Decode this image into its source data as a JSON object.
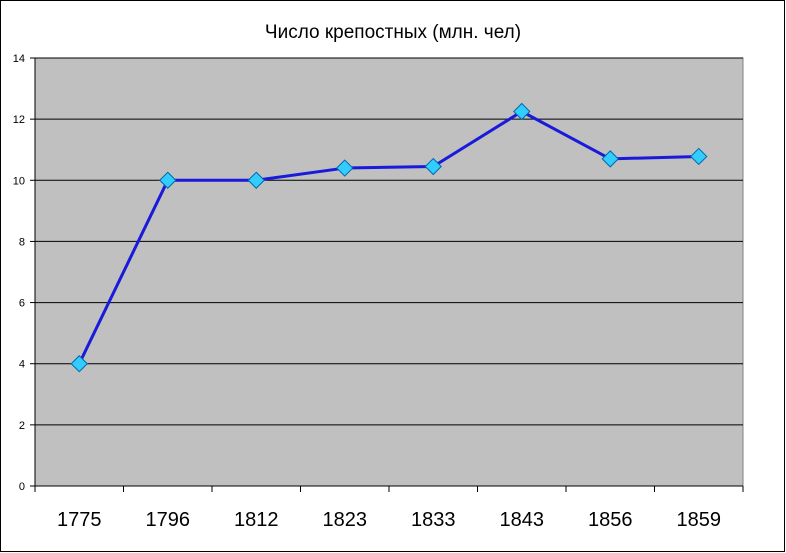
{
  "chart_data": {
    "type": "line",
    "title": "Число крепостных (млн. чел)",
    "xlabel": "",
    "ylabel": "",
    "categories": [
      "1775",
      "1796",
      "1812",
      "1823",
      "1833",
      "1843",
      "1856",
      "1859"
    ],
    "series": [
      {
        "values": [
          4.0,
          10.0,
          10.0,
          10.4,
          10.45,
          12.25,
          10.7,
          10.78
        ]
      }
    ],
    "ylim": [
      0,
      14
    ],
    "yticks": [
      0,
      2,
      4,
      6,
      8,
      10,
      12,
      14
    ],
    "grid": true,
    "legend": "none",
    "colors": {
      "plot_background": "#c0c0c0",
      "line": "#1a1adb",
      "marker": "#33ccff",
      "gridline": "#000000"
    },
    "marker_shape": "diamond"
  }
}
